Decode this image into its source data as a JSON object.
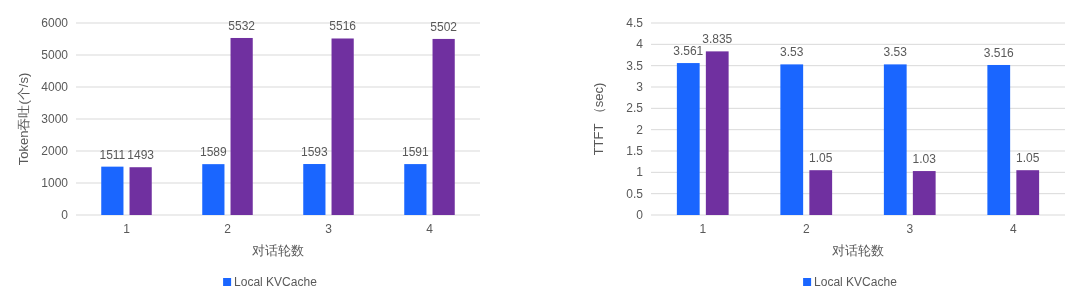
{
  "chart_data": [
    {
      "type": "bar",
      "xlabel": "对话轮数",
      "ylabel": "Token吞吐(个/s)",
      "categories": [
        "1",
        "2",
        "3",
        "4"
      ],
      "series": [
        {
          "name": "Local KVCache",
          "color": "#1a66ff",
          "values": [
            1511,
            1589,
            1593,
            1591
          ]
        },
        {
          "color": "#7030a0",
          "values": [
            1493,
            5532,
            5516,
            5502
          ]
        }
      ],
      "ylim": [
        0,
        6000
      ],
      "yticks": [
        0,
        1000,
        2000,
        3000,
        4000,
        5000,
        6000
      ],
      "grid": "y",
      "legend": "bottom",
      "data_labels": true
    },
    {
      "type": "bar",
      "xlabel": "对话轮数",
      "ylabel": "TTFT （sec)",
      "categories": [
        "1",
        "2",
        "3",
        "4"
      ],
      "series": [
        {
          "name": "Local KVCache",
          "color": "#1a66ff",
          "values": [
            3.561,
            3.53,
            3.53,
            3.516
          ]
        },
        {
          "color": "#7030a0",
          "values": [
            3.835,
            1.05,
            1.03,
            1.05
          ]
        }
      ],
      "ylim": [
        0,
        4.5
      ],
      "yticks": [
        0,
        0.5,
        1,
        1.5,
        2,
        2.5,
        3,
        3.5,
        4,
        4.5
      ],
      "grid": "y",
      "legend": "bottom",
      "data_labels": true
    }
  ]
}
